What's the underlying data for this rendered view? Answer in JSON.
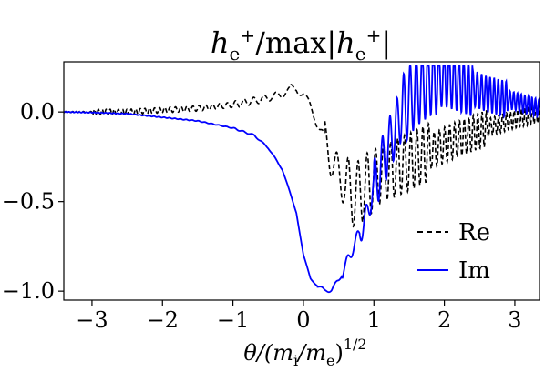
{
  "chart_data": {
    "type": "line",
    "title": "h_e^+/max|h_e^+|",
    "title_display": {
      "lead": "h",
      "sub": "e",
      "sup": "+",
      "middle": "/max|",
      "lead2": "h",
      "sub2": "e",
      "sup2": "+",
      "tail": "|"
    },
    "xlabel": "θ/(m_i/m_e)^{1/2}",
    "xlabel_display": {
      "a": "θ/(m",
      "sub1": "i",
      "b": "/m",
      "sub2": "e",
      "c": ")",
      "sup": "1/2"
    },
    "ylabel": "",
    "xlim": [
      -3.4,
      3.35
    ],
    "ylim": [
      -1.05,
      0.28
    ],
    "xticks": [
      -3,
      -2,
      -1,
      0,
      1,
      2,
      3
    ],
    "xtick_labels": [
      "−3",
      "−2",
      "−1",
      "0",
      "1",
      "2",
      "3"
    ],
    "yticks": [
      0.0,
      -0.5,
      -1.0
    ],
    "ytick_labels": [
      "0.0",
      "−0.5",
      "−1.0"
    ],
    "grid": false,
    "legend_position": "lower-right",
    "series": [
      {
        "name": "Re",
        "color": "#000000",
        "dash": "dashed",
        "x": [
          -3.4,
          -3.0,
          -2.5,
          -2.0,
          -1.5,
          -1.0,
          -0.6,
          -0.3,
          -0.1,
          0.0,
          0.1,
          0.2,
          0.3,
          0.4,
          0.5,
          0.6,
          0.7,
          0.8,
          0.9,
          1.0,
          1.2,
          1.5,
          1.8,
          2.2,
          2.6,
          3.0,
          3.35
        ],
        "y": [
          0.0,
          0.0,
          0.0,
          0.01,
          0.02,
          0.04,
          0.07,
          0.1,
          0.14,
          0.1,
          0.02,
          -0.06,
          -0.15,
          -0.26,
          -0.36,
          -0.42,
          -0.46,
          -0.45,
          -0.41,
          -0.37,
          -0.33,
          -0.28,
          -0.22,
          -0.15,
          -0.09,
          -0.04,
          -0.01
        ]
      },
      {
        "name": "Im",
        "color": "#0000ff",
        "dash": "solid",
        "x": [
          -3.4,
          -3.0,
          -2.5,
          -2.0,
          -1.5,
          -1.0,
          -0.7,
          -0.5,
          -0.3,
          -0.1,
          0.0,
          0.1,
          0.2,
          0.3,
          0.4,
          0.5,
          0.6,
          0.7,
          0.8,
          0.9,
          1.0,
          1.2,
          1.4,
          1.6,
          1.8,
          2.0,
          2.3,
          2.6,
          3.0,
          3.35
        ],
        "y": [
          0.0,
          -0.003,
          -0.01,
          -0.03,
          -0.05,
          -0.09,
          -0.13,
          -0.2,
          -0.32,
          -0.56,
          -0.8,
          -0.93,
          -0.97,
          -1.0,
          -0.99,
          -0.94,
          -0.86,
          -0.76,
          -0.67,
          -0.58,
          -0.42,
          -0.2,
          0.0,
          0.12,
          0.18,
          0.19,
          0.15,
          0.1,
          0.06,
          0.02
        ]
      }
    ]
  }
}
